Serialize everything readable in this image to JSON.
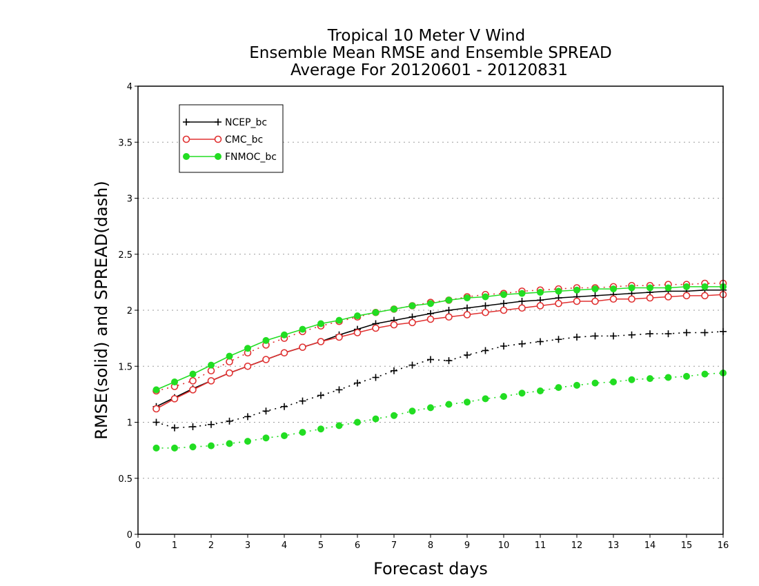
{
  "chart_data": {
    "type": "line",
    "title": [
      "Tropical 10 Meter V Wind",
      "Ensemble Mean RMSE and Ensemble SPREAD",
      "Average For 20120601 - 20120831"
    ],
    "xlabel": "Forecast days",
    "ylabel": "RMSE(solid) and SPREAD(dash)",
    "xlim": [
      0,
      16
    ],
    "ylim": [
      0,
      4
    ],
    "xticks": [
      "0",
      "1",
      "2",
      "3",
      "4",
      "5",
      "6",
      "7",
      "8",
      "9",
      "10",
      "11",
      "12",
      "13",
      "14",
      "15",
      "16"
    ],
    "yticks": [
      "0",
      "0.5",
      "1",
      "1.5",
      "2",
      "2.5",
      "3",
      "3.5",
      "4"
    ],
    "grid": true,
    "legend_position": "top-left",
    "x": [
      0.5,
      1,
      1.5,
      2,
      2.5,
      3,
      3.5,
      4,
      4.5,
      5,
      5.5,
      6,
      6.5,
      7,
      7.5,
      8,
      8.5,
      9,
      9.5,
      10,
      10.5,
      11,
      11.5,
      12,
      12.5,
      13,
      13.5,
      14,
      14.5,
      15,
      15.5,
      16
    ],
    "series": [
      {
        "name": "NCEP_bc",
        "color": "#000000",
        "marker": "plus",
        "rmse": [
          1.14,
          1.22,
          1.3,
          1.37,
          1.44,
          1.5,
          1.56,
          1.62,
          1.67,
          1.72,
          1.78,
          1.83,
          1.88,
          1.91,
          1.94,
          1.97,
          2.0,
          2.02,
          2.04,
          2.06,
          2.08,
          2.09,
          2.11,
          2.12,
          2.13,
          2.14,
          2.15,
          2.16,
          2.17,
          2.17,
          2.18,
          2.18
        ],
        "spread": [
          1.0,
          0.95,
          0.96,
          0.98,
          1.01,
          1.05,
          1.1,
          1.14,
          1.19,
          1.24,
          1.29,
          1.35,
          1.4,
          1.46,
          1.51,
          1.56,
          1.55,
          1.6,
          1.64,
          1.68,
          1.7,
          1.72,
          1.74,
          1.76,
          1.77,
          1.77,
          1.78,
          1.79,
          1.79,
          1.8,
          1.8,
          1.81
        ]
      },
      {
        "name": "CMC_bc",
        "color": "#e03030",
        "marker": "open-circle",
        "rmse": [
          1.12,
          1.21,
          1.29,
          1.37,
          1.44,
          1.5,
          1.56,
          1.62,
          1.67,
          1.72,
          1.76,
          1.8,
          1.84,
          1.87,
          1.89,
          1.92,
          1.94,
          1.96,
          1.98,
          2.0,
          2.02,
          2.04,
          2.06,
          2.08,
          2.08,
          2.1,
          2.1,
          2.11,
          2.12,
          2.13,
          2.13,
          2.14
        ],
        "spread": [
          1.28,
          1.32,
          1.37,
          1.46,
          1.54,
          1.62,
          1.69,
          1.75,
          1.81,
          1.86,
          1.9,
          1.94,
          1.98,
          2.01,
          2.04,
          2.07,
          2.09,
          2.12,
          2.14,
          2.15,
          2.17,
          2.18,
          2.19,
          2.2,
          2.2,
          2.21,
          2.22,
          2.22,
          2.23,
          2.23,
          2.24,
          2.24
        ]
      },
      {
        "name": "FNMOC_bc",
        "color": "#22dd22",
        "marker": "filled-circle",
        "rmse": [
          1.29,
          1.36,
          1.43,
          1.51,
          1.59,
          1.66,
          1.73,
          1.78,
          1.83,
          1.88,
          1.91,
          1.95,
          1.98,
          2.01,
          2.04,
          2.06,
          2.09,
          2.11,
          2.12,
          2.14,
          2.15,
          2.16,
          2.17,
          2.18,
          2.19,
          2.19,
          2.2,
          2.2,
          2.2,
          2.21,
          2.21,
          2.21
        ],
        "spread": [
          0.77,
          0.77,
          0.78,
          0.79,
          0.81,
          0.83,
          0.86,
          0.88,
          0.91,
          0.94,
          0.97,
          1.0,
          1.03,
          1.06,
          1.1,
          1.13,
          1.16,
          1.18,
          1.21,
          1.23,
          1.26,
          1.28,
          1.31,
          1.33,
          1.35,
          1.36,
          1.38,
          1.39,
          1.4,
          1.41,
          1.43,
          1.44
        ]
      }
    ]
  }
}
